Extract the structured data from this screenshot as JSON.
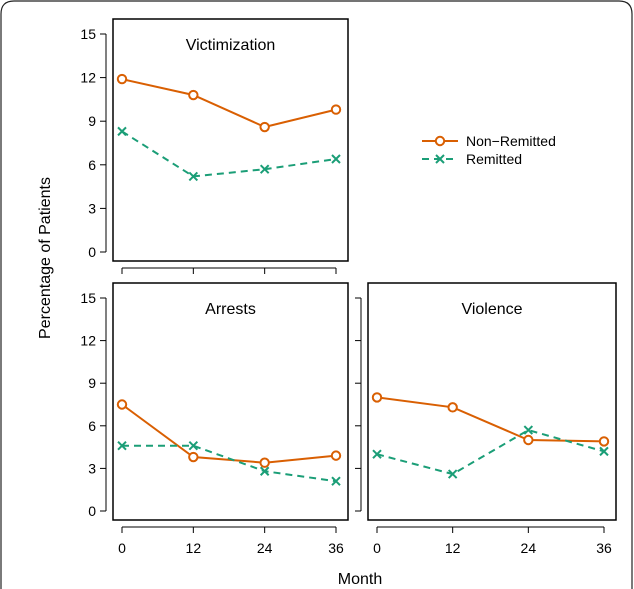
{
  "figure": {
    "ylabel": "Percentage of Patients",
    "xlabel": "Month"
  },
  "colors": {
    "non_remitted": "#d95f02",
    "remitted": "#1b9e77"
  },
  "legend": {
    "placement": "right of top panel",
    "items": [
      {
        "label": "Non−Remitted",
        "color": "#d95f02",
        "marker": "circle",
        "line": "solid"
      },
      {
        "label": "Remitted",
        "color": "#1b9e77",
        "marker": "cross",
        "line": "dashed"
      }
    ]
  },
  "chart_data": [
    {
      "type": "line",
      "title": "Victimization",
      "x": [
        0,
        12,
        24,
        36
      ],
      "ylim": [
        0,
        15
      ],
      "yticks": [
        "0",
        "3",
        "6",
        "9",
        "12",
        "15"
      ],
      "xticks": [],
      "series": [
        {
          "name": "Non−Remitted",
          "values": [
            11.9,
            10.8,
            8.6,
            9.8
          ]
        },
        {
          "name": "Remitted",
          "values": [
            8.3,
            5.2,
            5.7,
            6.4
          ]
        }
      ]
    },
    {
      "type": "line",
      "title": "Arrests",
      "x": [
        0,
        12,
        24,
        36
      ],
      "ylim": [
        0,
        15
      ],
      "yticks": [
        "0",
        "3",
        "6",
        "9",
        "12",
        "15"
      ],
      "xticks": [
        "0",
        "12",
        "24",
        "36"
      ],
      "series": [
        {
          "name": "Non−Remitted",
          "values": [
            7.5,
            3.8,
            3.4,
            3.9
          ]
        },
        {
          "name": "Remitted",
          "values": [
            4.6,
            4.6,
            2.8,
            2.1
          ]
        }
      ]
    },
    {
      "type": "line",
      "title": "Violence",
      "x": [
        0,
        12,
        24,
        36
      ],
      "ylim": [
        0,
        15
      ],
      "yticks": [],
      "xticks": [
        "0",
        "12",
        "24",
        "36"
      ],
      "series": [
        {
          "name": "Non−Remitted",
          "values": [
            8.0,
            7.3,
            5.0,
            4.9
          ]
        },
        {
          "name": "Remitted",
          "values": [
            4.0,
            2.6,
            5.7,
            4.2
          ]
        }
      ]
    }
  ]
}
